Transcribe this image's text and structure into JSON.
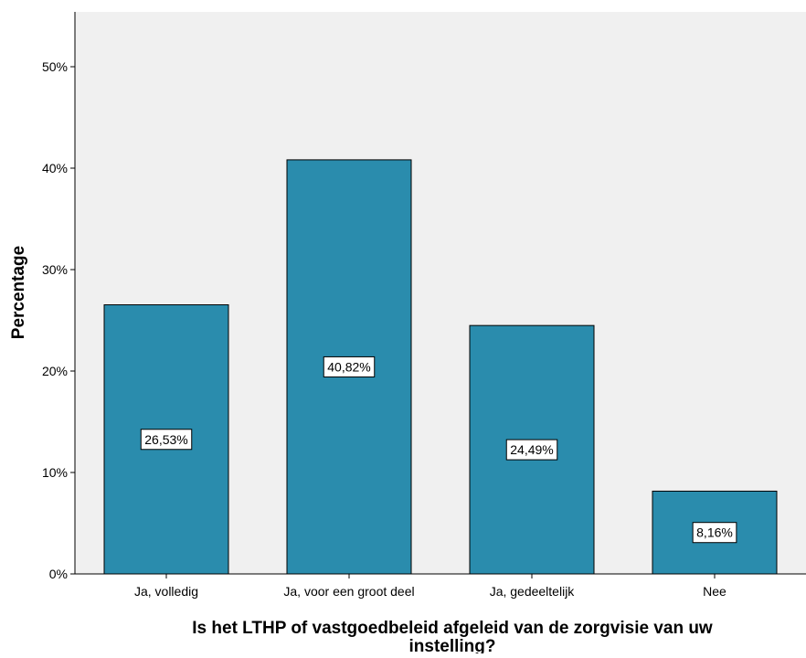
{
  "chart_data": {
    "type": "bar",
    "categories": [
      "Ja, volledig",
      "Ja, voor een groot deel",
      "Ja, gedeeltelijk",
      "Nee"
    ],
    "values": [
      26.53,
      40.82,
      24.49,
      8.16
    ],
    "value_labels": [
      "26,53%",
      "40,82%",
      "24,49%",
      "8,16%"
    ],
    "yticks": [
      0,
      10,
      20,
      30,
      40,
      50
    ],
    "ytick_labels": [
      "0%",
      "10%",
      "20%",
      "30%",
      "40%",
      "50%"
    ],
    "ylim": [
      0,
      55
    ],
    "ylabel": "Percentage",
    "xlabel": "Is het LTHP of vastgoedbeleid afgeleid van de zorgvisie van uw instelling?",
    "xlabel_lines": [
      "Is het LTHP of vastgoedbeleid afgeleid van de zorgvisie van uw",
      "instelling?"
    ],
    "bar_color": "#2a8cad",
    "plot_background": "#f0f0f0",
    "grid": false
  }
}
